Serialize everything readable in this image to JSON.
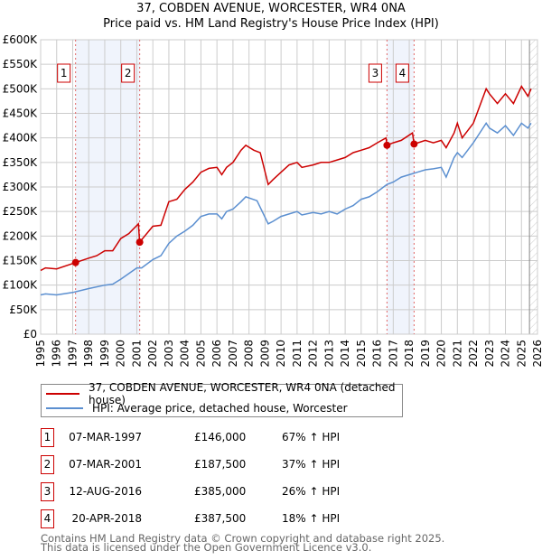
{
  "chart_data": {
    "type": "line",
    "title": "37, COBDEN AVENUE, WORCESTER, WR4 0NA",
    "subtitle": "Price paid vs. HM Land Registry's House Price Index (HPI)",
    "xlim": [
      1995,
      2026
    ],
    "ylim": [
      0,
      600000
    ],
    "y_ticks": [
      {
        "v": 0,
        "label": "£0"
      },
      {
        "v": 50000,
        "label": "£50K"
      },
      {
        "v": 100000,
        "label": "£100K"
      },
      {
        "v": 150000,
        "label": "£150K"
      },
      {
        "v": 200000,
        "label": "£200K"
      },
      {
        "v": 250000,
        "label": "£250K"
      },
      {
        "v": 300000,
        "label": "£300K"
      },
      {
        "v": 350000,
        "label": "£350K"
      },
      {
        "v": 400000,
        "label": "£400K"
      },
      {
        "v": 450000,
        "label": "£450K"
      },
      {
        "v": 500000,
        "label": "£500K"
      },
      {
        "v": 550000,
        "label": "£550K"
      },
      {
        "v": 600000,
        "label": "£600K"
      }
    ],
    "x_ticks": [
      "1995",
      "1996",
      "1997",
      "1998",
      "1999",
      "2000",
      "2001",
      "2002",
      "2003",
      "2004",
      "2005",
      "2006",
      "2007",
      "2008",
      "2009",
      "2010",
      "2011",
      "2012",
      "2013",
      "2014",
      "2015",
      "2016",
      "2017",
      "2018",
      "2019",
      "2020",
      "2021",
      "2022",
      "2023",
      "2024",
      "2025",
      "2026"
    ],
    "grid": true,
    "series": [
      {
        "name": "37, COBDEN AVENUE, WORCESTER, WR4 0NA (detached house)",
        "color": "#cc0000",
        "x": [
          1995,
          1995.3,
          1996,
          1997.18,
          1998,
          1998.5,
          1999,
          1999.5,
          2000,
          2000.5,
          2001.1,
          2001.18,
          2002,
          2002.5,
          2003,
          2003.5,
          2004,
          2004.5,
          2005,
          2005.5,
          2006,
          2006.3,
          2006.6,
          2007,
          2007.5,
          2007.8,
          2008.3,
          2008.7,
          2009.2,
          2009.5,
          2010,
          2010.5,
          2011,
          2011.3,
          2012,
          2012.5,
          2013,
          2013.5,
          2014,
          2014.5,
          2015,
          2015.5,
          2016,
          2016.55,
          2016.61,
          2017,
          2017.5,
          2018.2,
          2018.3,
          2019,
          2019.5,
          2020,
          2020.3,
          2020.8,
          2021,
          2021.3,
          2022,
          2022.8,
          2023,
          2023.5,
          2024,
          2024.5,
          2025,
          2025.4,
          2025.6
        ],
        "y": [
          130000,
          135000,
          133000,
          146000,
          155000,
          160000,
          170000,
          170000,
          195000,
          205000,
          225000,
          187500,
          220000,
          222000,
          270000,
          275000,
          295000,
          310000,
          330000,
          338000,
          340000,
          325000,
          340000,
          350000,
          375000,
          385000,
          375000,
          370000,
          305000,
          315000,
          330000,
          345000,
          350000,
          340000,
          345000,
          350000,
          350000,
          355000,
          360000,
          370000,
          375000,
          380000,
          390000,
          400000,
          385000,
          390000,
          395000,
          410000,
          387500,
          395000,
          390000,
          395000,
          380000,
          410000,
          430000,
          400000,
          430000,
          500000,
          490000,
          470000,
          490000,
          470000,
          505000,
          485000,
          500000
        ]
      },
      {
        "name": "HPI: Average price, detached house, Worcester",
        "color": "#5b8fd0",
        "x": [
          1995,
          1995.3,
          1996,
          1997,
          1998,
          1999,
          1999.5,
          2000,
          2001,
          2001.3,
          2002,
          2002.5,
          2003,
          2003.5,
          2004,
          2004.5,
          2005,
          2005.5,
          2006,
          2006.3,
          2006.6,
          2007,
          2007.5,
          2007.8,
          2008.5,
          2009.2,
          2009.5,
          2010,
          2010.5,
          2011,
          2011.3,
          2012,
          2012.5,
          2013,
          2013.5,
          2014,
          2014.5,
          2015,
          2015.5,
          2016,
          2016.6,
          2017,
          2017.5,
          2018,
          2018.5,
          2019,
          2019.5,
          2020,
          2020.3,
          2020.8,
          2021,
          2021.3,
          2022,
          2022.8,
          2023,
          2023.5,
          2024,
          2024.5,
          2025,
          2025.4,
          2025.6
        ],
        "y": [
          80000,
          82000,
          80000,
          85000,
          93000,
          100000,
          102000,
          112000,
          135000,
          135000,
          152000,
          160000,
          185000,
          200000,
          210000,
          222000,
          240000,
          245000,
          245000,
          235000,
          250000,
          255000,
          270000,
          280000,
          272000,
          225000,
          230000,
          240000,
          245000,
          250000,
          243000,
          248000,
          245000,
          250000,
          245000,
          255000,
          262000,
          275000,
          280000,
          290000,
          305000,
          310000,
          320000,
          325000,
          330000,
          335000,
          337000,
          340000,
          320000,
          360000,
          370000,
          360000,
          390000,
          430000,
          420000,
          410000,
          425000,
          405000,
          430000,
          420000,
          430000
        ]
      }
    ],
    "sales": [
      {
        "n": "1",
        "x": 1997.18,
        "y": 146000
      },
      {
        "n": "2",
        "x": 2001.18,
        "y": 187500
      },
      {
        "n": "3",
        "x": 2016.61,
        "y": 385000
      },
      {
        "n": "4",
        "x": 2018.3,
        "y": 387500
      }
    ],
    "shaded_periods": [
      [
        1997.18,
        2001.18
      ],
      [
        2016.61,
        2018.3
      ]
    ],
    "forecast_from": 2025.5,
    "legend_position": "bottom"
  },
  "table": [
    {
      "n": "1",
      "date": "07-MAR-1997",
      "price": "£146,000",
      "pct": "67% ↑ HPI"
    },
    {
      "n": "2",
      "date": "07-MAR-2001",
      "price": "£187,500",
      "pct": "37% ↑ HPI"
    },
    {
      "n": "3",
      "date": "12-AUG-2016",
      "price": "£385,000",
      "pct": "26% ↑ HPI"
    },
    {
      "n": "4",
      "date": "20-APR-2018",
      "price": "£387,500",
      "pct": "18% ↑ HPI"
    }
  ],
  "footer": {
    "line1": "Contains HM Land Registry data © Crown copyright and database right 2025.",
    "line2": "This data is licensed under the Open Government Licence v3.0."
  }
}
